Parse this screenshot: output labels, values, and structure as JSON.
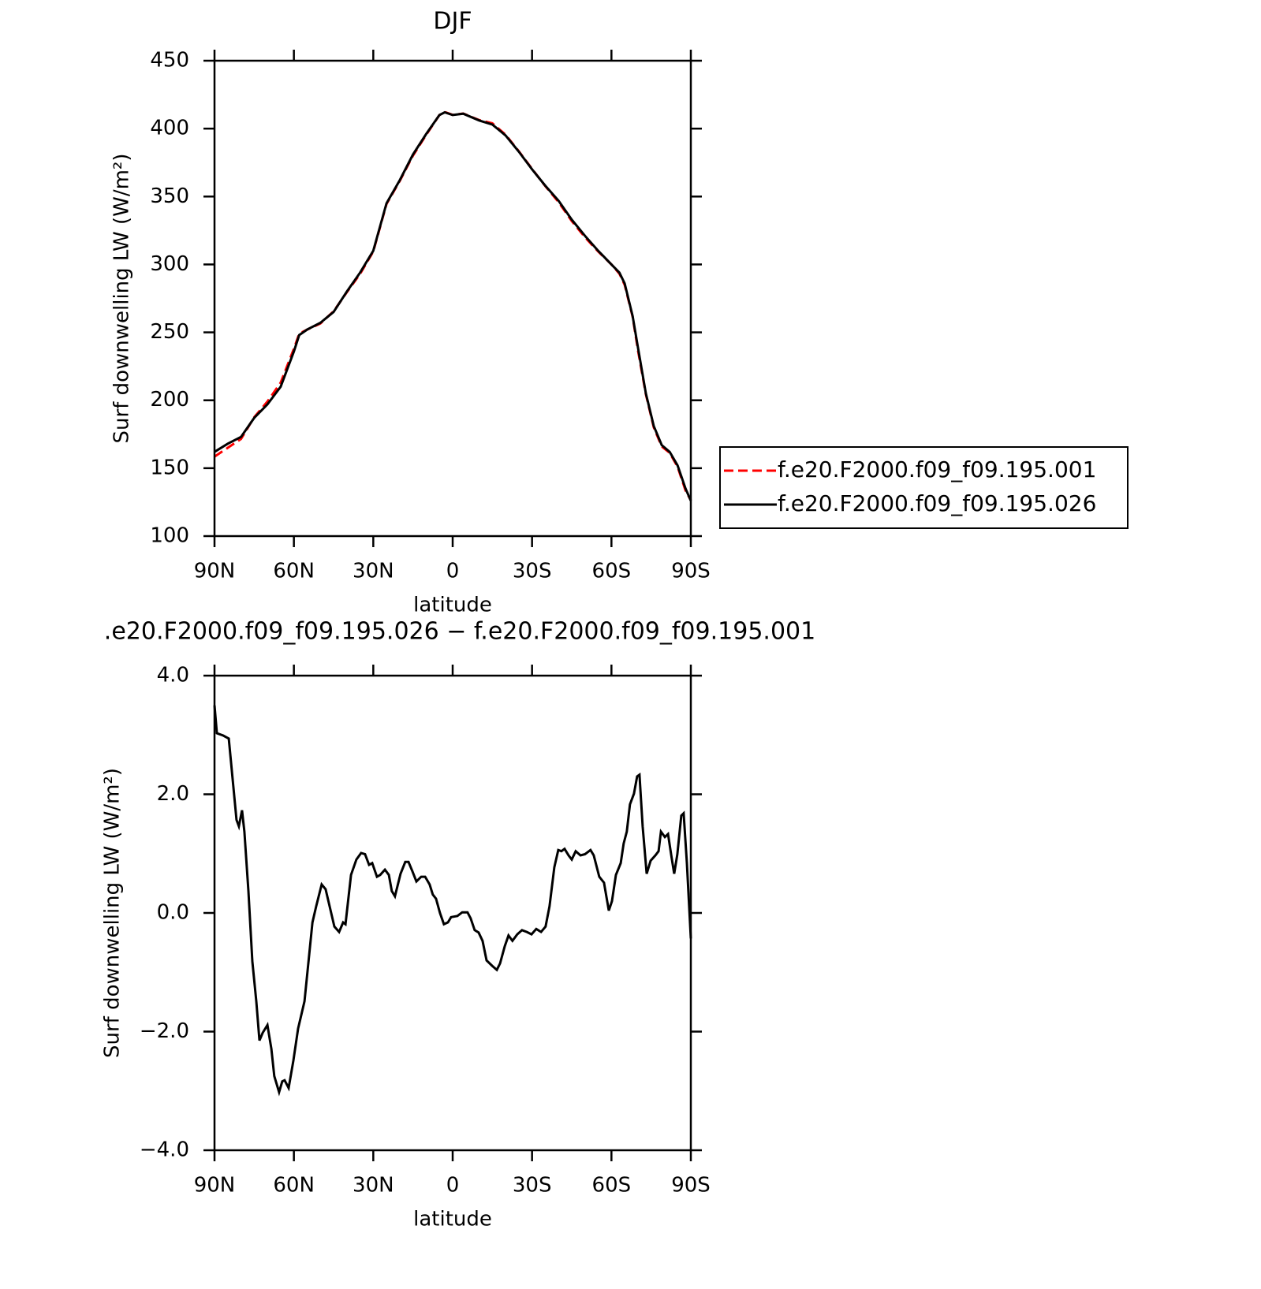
{
  "chart_data": [
    {
      "type": "line",
      "title": "DJF",
      "xlabel": "latitude",
      "ylabel": "Surf downwelling LW (W/m²)",
      "x": [
        90,
        85,
        80,
        75,
        70,
        65,
        60,
        58,
        55,
        50,
        45,
        40,
        35,
        30,
        25,
        20,
        15,
        10,
        5,
        3,
        0,
        -4,
        -10,
        -15,
        -20,
        -25,
        -30,
        -35,
        -40,
        -45,
        -50,
        -55,
        -60,
        -63,
        -65,
        -68,
        -70,
        -73,
        -76,
        -79,
        -82,
        -85,
        -88,
        -90
      ],
      "series": [
        {
          "name": "f.e20.F2000.f09_f09.195.001",
          "color": "#ff0000",
          "line_style": "dashed",
          "values": [
            158.5,
            165,
            171.5,
            187.5,
            199,
            213,
            238,
            249,
            252,
            256.5,
            265.5,
            279.5,
            293,
            309.5,
            344.5,
            361.5,
            380.2,
            395.4,
            410,
            412.2,
            410.1,
            411.1,
            406.3,
            403.9,
            395.5,
            383.3,
            370.3,
            357.7,
            346,
            332,
            320,
            309.5,
            300,
            293.2,
            285,
            261.5,
            237,
            204.3,
            180,
            166,
            161.3,
            151,
            133.5,
            126.4
          ]
        },
        {
          "name": "f.e20.F2000.f09_f09.195.026",
          "color": "#000000",
          "line_style": "solid",
          "values": [
            162,
            168,
            173,
            187,
            197,
            210,
            236,
            248,
            252,
            257,
            265,
            280,
            294,
            310,
            345,
            362,
            381,
            396,
            410,
            412,
            410,
            411,
            406,
            403,
            395,
            383,
            370,
            358,
            347,
            333,
            321,
            310,
            300,
            294,
            286,
            262,
            239,
            205,
            181,
            167,
            162,
            152,
            135,
            126
          ]
        }
      ],
      "xlim": [
        90,
        -90
      ],
      "xticks": [
        {
          "value": 90,
          "label": "90N"
        },
        {
          "value": 60,
          "label": "60N"
        },
        {
          "value": 30,
          "label": "30N"
        },
        0,
        {
          "value": -30,
          "label": "30S"
        },
        {
          "value": -60,
          "label": "60S"
        },
        {
          "value": -90,
          "label": "90S"
        }
      ],
      "ylim": [
        100,
        450
      ],
      "yticks": [
        100,
        150,
        200,
        250,
        300,
        350,
        400,
        450
      ],
      "legend": "right"
    },
    {
      "type": "line",
      "title": ".e20.F2000.f09_f09.195.026 − f.e20.F2000.f09_f09.195.001",
      "xlabel": "latitude",
      "ylabel": "Surf downwelling LW (W/m²)",
      "x": [
        90,
        89.1,
        86.7,
        84.6,
        81.7,
        80.8,
        79.6,
        78.7,
        77.2,
        75.7,
        74.2,
        73.0,
        71.8,
        70.0,
        68.5,
        67.4,
        65.6,
        64.4,
        63.5,
        62.0,
        60.2,
        58.4,
        56.0,
        53.0,
        51.6,
        49.5,
        48.0,
        46.5,
        44.7,
        42.9,
        41.4,
        40.5,
        38.4,
        36.4,
        34.6,
        33.1,
        31.6,
        30.4,
        28.6,
        27.4,
        25.6,
        24.1,
        23.0,
        21.8,
        19.7,
        17.9,
        16.7,
        15.2,
        13.7,
        11.9,
        10.4,
        8.7,
        7.5,
        6.3,
        4.8,
        3.3,
        1.8,
        0.6,
        -1.8,
        -3.6,
        -5.6,
        -6.8,
        -8.3,
        -9.8,
        -11.3,
        -12.8,
        -14.9,
        -16.7,
        -17.9,
        -19.7,
        -21.1,
        -22.6,
        -24.4,
        -26.2,
        -28.0,
        -29.8,
        -31.6,
        -33.4,
        -35.1,
        -36.6,
        -38.4,
        -39.9,
        -41.1,
        -42.3,
        -43.8,
        -45.0,
        -46.5,
        -48.3,
        -50.0,
        -52.1,
        -53.3,
        -55.4,
        -57.2,
        -59.0,
        -60.2,
        -61.7,
        -63.5,
        -64.6,
        -65.8,
        -67.0,
        -68.5,
        -69.7,
        -70.6,
        -71.8,
        -73.3,
        -74.8,
        -76.6,
        -77.8,
        -78.7,
        -80.2,
        -81.4,
        -82.6,
        -83.7,
        -84.9,
        -86.4,
        -87.3,
        -88.5,
        -90
      ],
      "series": [
        {
          "color": "#000000",
          "line_style": "solid",
          "values": [
            3.5,
            3.03,
            2.99,
            2.94,
            1.57,
            1.46,
            1.73,
            1.37,
            0.37,
            -0.82,
            -1.49,
            -2.15,
            -2.02,
            -1.89,
            -2.29,
            -2.75,
            -3.02,
            -2.84,
            -2.82,
            -2.95,
            -2.49,
            -1.95,
            -1.49,
            -0.16,
            0.11,
            0.48,
            0.4,
            0.11,
            -0.23,
            -0.32,
            -0.16,
            -0.19,
            0.64,
            0.9,
            1.01,
            0.99,
            0.81,
            0.84,
            0.61,
            0.64,
            0.73,
            0.64,
            0.37,
            0.28,
            0.66,
            0.86,
            0.86,
            0.7,
            0.53,
            0.61,
            0.61,
            0.48,
            0.31,
            0.24,
            0.0,
            -0.19,
            -0.16,
            -0.07,
            -0.05,
            0.01,
            0.01,
            -0.09,
            -0.29,
            -0.33,
            -0.47,
            -0.8,
            -0.89,
            -0.96,
            -0.85,
            -0.56,
            -0.38,
            -0.47,
            -0.36,
            -0.29,
            -0.32,
            -0.36,
            -0.27,
            -0.32,
            -0.23,
            0.11,
            0.77,
            1.06,
            1.04,
            1.08,
            0.97,
            0.9,
            1.04,
            0.97,
            0.99,
            1.06,
            0.97,
            0.61,
            0.51,
            0.04,
            0.2,
            0.64,
            0.84,
            1.17,
            1.37,
            1.83,
            2.01,
            2.3,
            2.33,
            1.46,
            0.66,
            0.88,
            0.97,
            1.04,
            1.37,
            1.28,
            1.33,
            0.97,
            0.66,
            0.99,
            1.64,
            1.68,
            0.84,
            -0.43
          ]
        }
      ],
      "xlim": [
        90,
        -90
      ],
      "xticks": [
        {
          "value": 90,
          "label": "90N"
        },
        {
          "value": 60,
          "label": "60N"
        },
        {
          "value": 30,
          "label": "30N"
        },
        0,
        {
          "value": -30,
          "label": "30S"
        },
        {
          "value": -60,
          "label": "60S"
        },
        {
          "value": -90,
          "label": "90S"
        }
      ],
      "ylim": [
        -4,
        4
      ],
      "yticks": [
        {
          "value": -4,
          "label": "−4.0"
        },
        {
          "value": -2,
          "label": "−2.0"
        },
        {
          "value": 0,
          "label": "0.0"
        },
        {
          "value": 2,
          "label": "2.0"
        },
        {
          "value": 4,
          "label": "4.0"
        }
      ]
    }
  ]
}
